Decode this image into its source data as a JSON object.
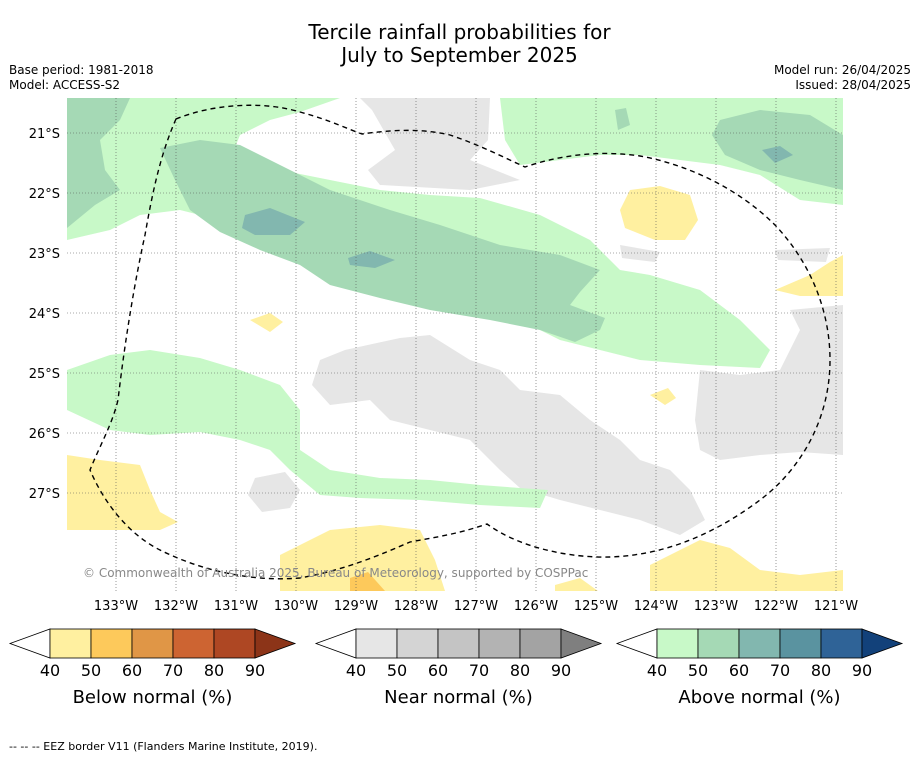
{
  "header": {
    "title_line1": "Tercile rainfall probabilities for",
    "title_line2": "July to September 2025",
    "base_period": "Base period: 1981-2018",
    "model": "Model: ACCESS-S2",
    "model_run": "Model run: 26/04/2025",
    "issued": "Issued: 28/04/2025"
  },
  "map": {
    "lat_labels": [
      "21°S",
      "22°S",
      "23°S",
      "24°S",
      "25°S",
      "26°S",
      "27°S"
    ],
    "lon_labels": [
      "133°W",
      "132°W",
      "131°W",
      "130°W",
      "129°W",
      "128°W",
      "127°W",
      "126°W",
      "125°W",
      "124°W",
      "123°W",
      "122°W",
      "121°W"
    ],
    "copyright": "© Commonwealth of Australia 2025, Bureau of Meteorology, supported by COSPPac"
  },
  "colorbars": [
    {
      "label": "Below normal (%)",
      "ticks": [
        "40",
        "50",
        "60",
        "70",
        "80",
        "90"
      ],
      "colors": [
        "#ffffff",
        "#fff0a0",
        "#fdc95b",
        "#e09646",
        "#cd6432",
        "#ae4723",
        "#8c3418"
      ]
    },
    {
      "label": "Near normal (%)",
      "ticks": [
        "40",
        "50",
        "60",
        "70",
        "80",
        "90"
      ],
      "colors": [
        "#ffffff",
        "#e6e6e6",
        "#d4d4d4",
        "#c4c4c4",
        "#b3b3b3",
        "#a3a3a3",
        "#7f7f7f"
      ]
    },
    {
      "label": "Above normal (%)",
      "ticks": [
        "40",
        "50",
        "60",
        "70",
        "80",
        "90"
      ],
      "colors": [
        "#ffffff",
        "#c8f9c8",
        "#a5d9b5",
        "#82b7af",
        "#5a93a0",
        "#2f6397",
        "#12417a"
      ]
    }
  ],
  "legend_note": "--  --  -- EEZ border V11 (Flanders Marine Institute, 2019)."
}
